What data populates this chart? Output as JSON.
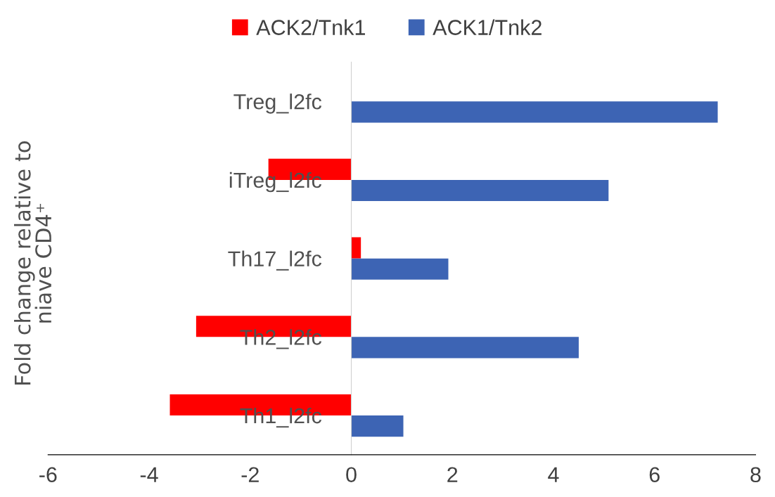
{
  "chart_data": {
    "type": "bar",
    "orientation": "horizontal",
    "ylabel": "Fold change relative to niave CD4⁺",
    "categories": [
      "Treg_l2fc",
      "iTreg_l2fc",
      "Th17_l2fc",
      "Th2_l2fc",
      "Th1_l2fc"
    ],
    "series": [
      {
        "name": "ACK2/Tnk1",
        "color": "#ff0000",
        "values": [
          null,
          -1.64,
          0.19,
          -3.07,
          -3.59
        ]
      },
      {
        "name": "ACK1/Tnk2",
        "color": "#3d64b4",
        "values": [
          7.25,
          5.09,
          1.92,
          4.5,
          1.03
        ]
      }
    ],
    "xlim": [
      -6,
      8
    ],
    "xticks": [
      -6,
      -4,
      -2,
      0,
      2,
      4,
      6,
      8
    ],
    "grid": false,
    "legend": "top"
  }
}
